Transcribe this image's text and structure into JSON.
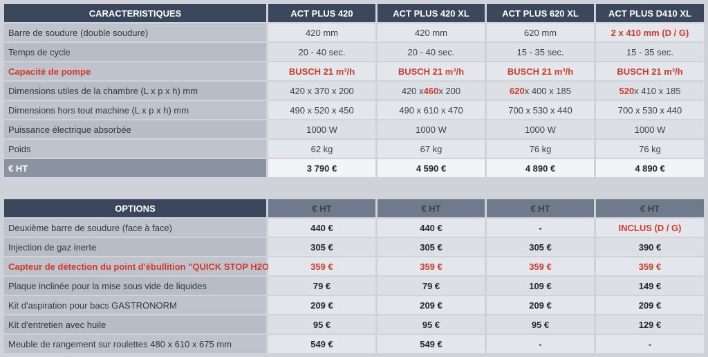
{
  "specs": {
    "header": [
      "CARACTERISTIQUES",
      "ACT PLUS 420",
      "ACT PLUS 420 XL",
      "ACT PLUS 620 XL",
      "ACT PLUS D410 XL"
    ],
    "rows": [
      {
        "label": "Barre de soudure (double soudure)",
        "values": [
          "420 mm",
          "420 mm",
          "620 mm",
          "2 x 410 mm (D / G)"
        ]
      },
      {
        "label": "Temps de cycle",
        "values": [
          "20 - 40 sec.",
          "20 - 40 sec.",
          "15 - 35 sec.",
          "15 - 35 sec."
        ]
      },
      {
        "label": "Capacité de pompe",
        "values": [
          "BUSCH 21 m³/h",
          "BUSCH 21 m³/h",
          "BUSCH 21 m³/h",
          "BUSCH 21 m³/h"
        ]
      },
      {
        "label": "Dimensions utiles de la chambre (L x p x h) mm",
        "values": [
          {
            "pre": "420 x 370 x 200",
            "hl": "",
            "post": ""
          },
          {
            "pre": "420 x ",
            "hl": "460",
            "post": " x 200"
          },
          {
            "pre": "",
            "hl": "620",
            "post": " x 400 x 185"
          },
          {
            "pre": "",
            "hl": "520",
            "post": " x 410 x 185"
          }
        ]
      },
      {
        "label": "Dimensions hors tout machine (L x p x h) mm",
        "values": [
          "490 x 520 x 450",
          "490 x 610 x 470",
          "700 x 530 x 440",
          "700 x 530 x 440"
        ]
      },
      {
        "label": "Puissance électrique absorbée",
        "values": [
          "1000 W",
          "1000 W",
          "1000 W",
          "1000 W"
        ]
      },
      {
        "label": "Poids",
        "values": [
          "62 kg",
          "67 kg",
          "76 kg",
          "76 kg"
        ]
      },
      {
        "label": "€ HT",
        "values": [
          "3 790 €",
          "4 590 €",
          "4 890 €",
          "4 890 €"
        ]
      }
    ]
  },
  "options": {
    "header": [
      "OPTIONS",
      "€ HT",
      "€ HT",
      "€ HT",
      "€ HT"
    ],
    "rows": [
      {
        "label": "Deuxième barre de soudure (face à face)",
        "values": [
          "440 €",
          "440 €",
          "-",
          "INCLUS (D / G)"
        ]
      },
      {
        "label": "Injection de gaz inerte",
        "values": [
          "305 €",
          "305 €",
          "305 €",
          "390 €"
        ]
      },
      {
        "label": "Capteur de détection du point d'ébullition \"QUICK STOP H2O\"",
        "values": [
          "359 €",
          "359 €",
          "359 €",
          "359 €"
        ]
      },
      {
        "label": "Plaque inclinée pour la mise sous vide de liquides",
        "values": [
          "79 €",
          "79 €",
          "109 €",
          "149 €"
        ]
      },
      {
        "label": "Kit d'aspiration pour bacs GASTRONORM",
        "values": [
          "209 €",
          "209 €",
          "209 €",
          "209 €"
        ]
      },
      {
        "label": "Kit d'entretien avec huile",
        "values": [
          "95 €",
          "95 €",
          "95 €",
          "129 €"
        ]
      },
      {
        "label": "Meuble de rangement sur roulettes 480 x 610 x 675 mm",
        "values": [
          "549 €",
          "549 €",
          "-",
          "-"
        ]
      }
    ]
  },
  "colors": {
    "header_bg": "#3b475d",
    "highlight_red": "#d03a2c",
    "label_bg": "#bfc4cc",
    "value_bg": "#e3e6ea"
  }
}
